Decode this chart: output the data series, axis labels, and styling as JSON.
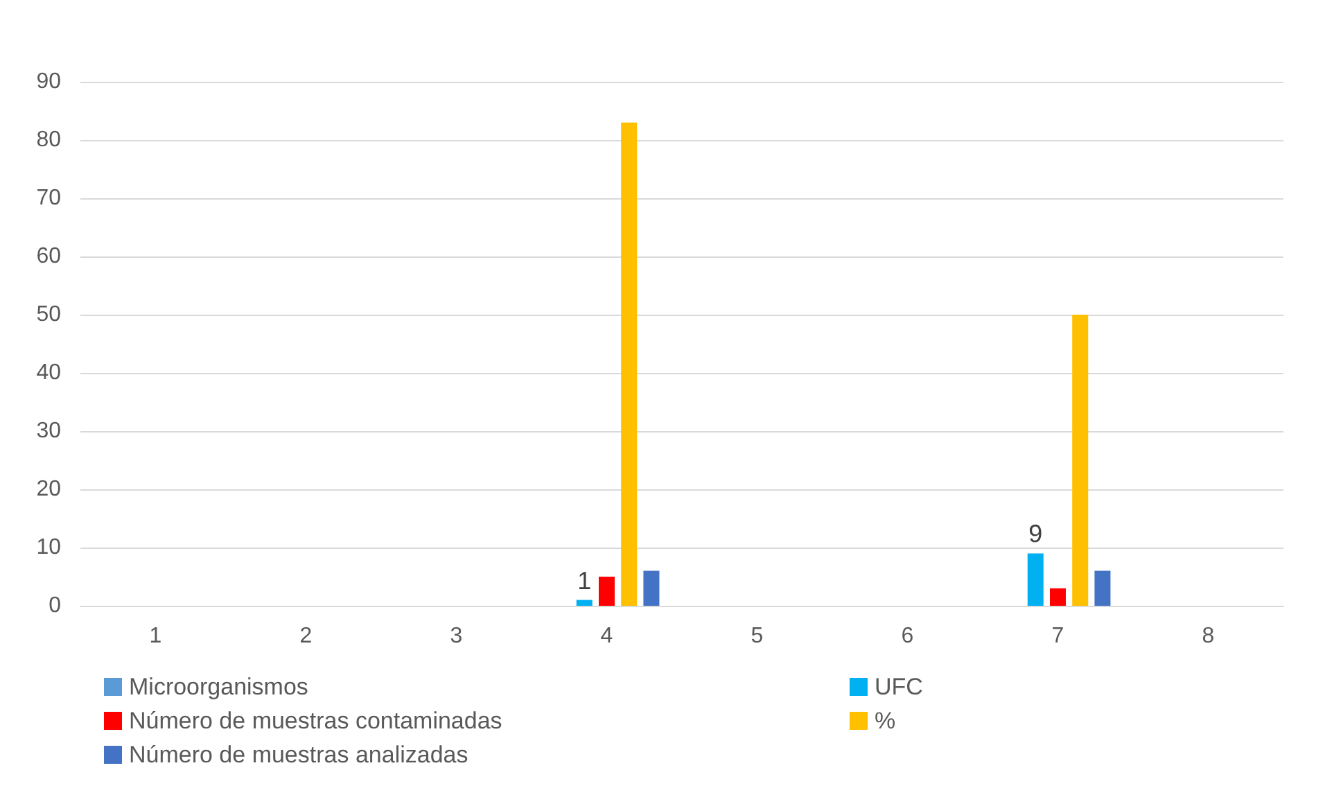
{
  "chart_data": {
    "type": "bar",
    "categories": [
      "1",
      "2",
      "3",
      "4",
      "5",
      "6",
      "7",
      "8"
    ],
    "series": [
      {
        "name": "Microorganismos",
        "color": "#5b9bd5",
        "values": [
          null,
          null,
          null,
          null,
          null,
          null,
          null,
          null
        ]
      },
      {
        "name": "UFC",
        "color": "#00b0f0",
        "values": [
          null,
          null,
          null,
          1,
          null,
          null,
          9,
          null
        ],
        "value_labels": [
          null,
          null,
          null,
          "1",
          null,
          null,
          "9",
          null
        ]
      },
      {
        "name": "Número de muestras contaminadas",
        "color": "#ff0000",
        "values": [
          null,
          null,
          null,
          5,
          null,
          null,
          3,
          null
        ]
      },
      {
        "name": "%",
        "color": "#ffc000",
        "values": [
          null,
          null,
          null,
          83,
          null,
          null,
          50,
          null
        ]
      },
      {
        "name": "Número de muestras analizadas",
        "color": "#4472c4",
        "values": [
          null,
          null,
          null,
          6,
          null,
          null,
          6,
          null
        ]
      }
    ],
    "ylim": [
      0,
      90
    ],
    "yticks": [
      0,
      10,
      20,
      30,
      40,
      50,
      60,
      70,
      80,
      90
    ],
    "grid": "y",
    "legend": "bottom"
  }
}
